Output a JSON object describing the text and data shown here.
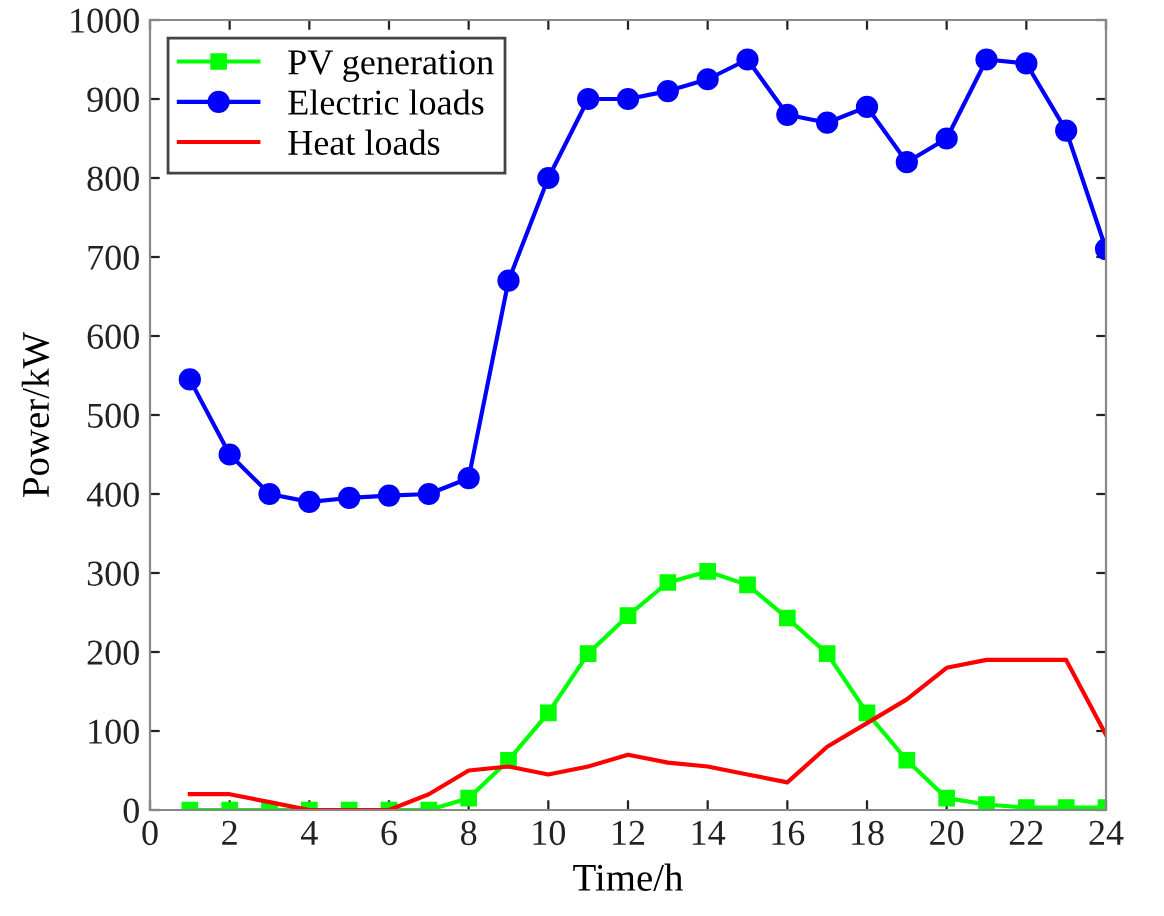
{
  "chart_data": {
    "type": "line",
    "xlabel": "Time/h",
    "ylabel": "Power/kW",
    "x": [
      1,
      2,
      3,
      4,
      5,
      6,
      7,
      8,
      9,
      10,
      11,
      12,
      13,
      14,
      15,
      16,
      17,
      18,
      19,
      20,
      21,
      22,
      23,
      24
    ],
    "series": [
      {
        "name": "PV generation",
        "color": "#00ff00",
        "marker": "square",
        "values": [
          0,
          0,
          0,
          0,
          0,
          0,
          0,
          15,
          63,
          123,
          198,
          246,
          288,
          302,
          285,
          243,
          198,
          123,
          63,
          15,
          7,
          3,
          3,
          3
        ]
      },
      {
        "name": "Electric loads",
        "color": "#0000ff",
        "marker": "circle",
        "values": [
          545,
          450,
          400,
          390,
          395,
          398,
          400,
          420,
          670,
          800,
          900,
          900,
          910,
          925,
          950,
          880,
          870,
          890,
          820,
          850,
          950,
          945,
          860,
          710
        ]
      },
      {
        "name": "Heat loads",
        "color": "#ff0000",
        "marker": "none",
        "values": [
          20,
          20,
          10,
          0,
          0,
          0,
          20,
          50,
          55,
          45,
          55,
          70,
          60,
          55,
          45,
          35,
          80,
          110,
          140,
          180,
          190,
          190,
          190,
          95
        ]
      }
    ],
    "xlim": [
      0,
      24
    ],
    "xticks": [
      0,
      2,
      4,
      6,
      8,
      10,
      12,
      14,
      16,
      18,
      20,
      22,
      24
    ],
    "ylim": [
      0,
      1000
    ],
    "yticks": [
      0,
      100,
      200,
      300,
      400,
      500,
      600,
      700,
      800,
      900,
      1000
    ],
    "grid": false,
    "legend": "top left"
  }
}
